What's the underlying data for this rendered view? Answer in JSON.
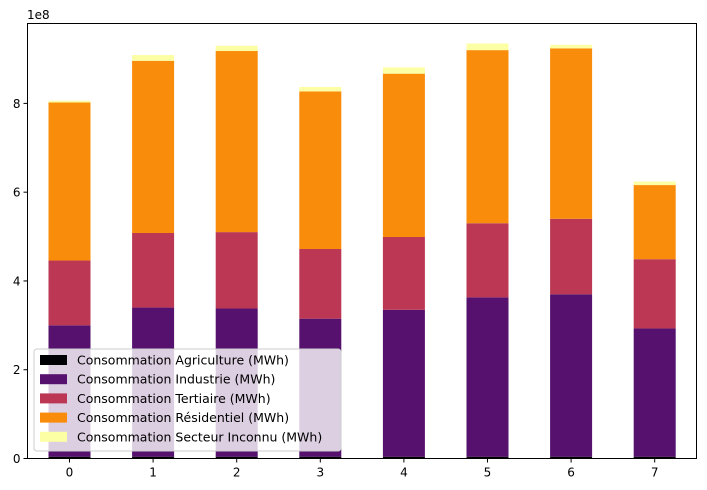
{
  "chart_data": {
    "type": "bar",
    "stacked": true,
    "categories": [
      "0",
      "1",
      "2",
      "3",
      "4",
      "5",
      "6",
      "7"
    ],
    "series": [
      {
        "name": "Consommation Agriculture (MWh)",
        "color": "#000004",
        "values": [
          4000000,
          4000000,
          4000000,
          4000000,
          4000000,
          4000000,
          4000000,
          4000000
        ]
      },
      {
        "name": "Consommation Industrie (MWh)",
        "color": "#56106e",
        "values": [
          296000000,
          336000000,
          334000000,
          311000000,
          331000000,
          359000000,
          366000000,
          289000000
        ]
      },
      {
        "name": "Consommation Tertiaire  (MWh)",
        "color": "#bb3754",
        "values": [
          146000000,
          168000000,
          172000000,
          157000000,
          164000000,
          167000000,
          170000000,
          156000000
        ]
      },
      {
        "name": "Consommation Résidentiel  (MWh)",
        "color": "#f98c0a",
        "values": [
          356000000,
          388000000,
          408000000,
          355000000,
          368000000,
          390000000,
          384000000,
          167000000
        ]
      },
      {
        "name": "Consommation Secteur Inconnu (MWh)",
        "color": "#fcffa4",
        "values": [
          4000000,
          13000000,
          12000000,
          10000000,
          14000000,
          15000000,
          8000000,
          8000000
        ]
      }
    ],
    "yticks": [
      "0",
      "2",
      "4",
      "6",
      "8"
    ],
    "ytick_values": [
      0,
      200000000,
      400000000,
      600000000,
      800000000
    ],
    "y_offset_text": "1e8",
    "ylim": [
      0,
      980000000
    ],
    "xlabel": "",
    "ylabel": "",
    "title": "",
    "legend_position": "lower-left",
    "grid": false
  }
}
